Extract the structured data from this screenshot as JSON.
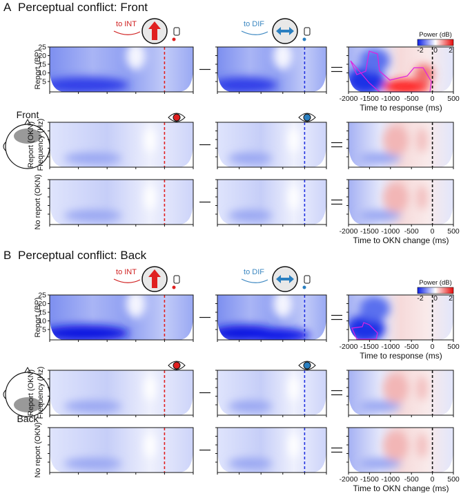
{
  "panels": [
    {
      "label": "A",
      "title": "Perceptual conflict: Front",
      "head_label": "Front",
      "to_int": "to INT",
      "to_dif": "to DIF",
      "rows": [
        {
          "label": "Report (BP)"
        },
        {
          "label": "Report (OKN)",
          "sublabel": "Frequency (Hz)"
        },
        {
          "label": "No report (OKN)"
        }
      ],
      "xlabels": [
        "Time to response (ms)",
        "Time to OKN change (ms)"
      ]
    },
    {
      "label": "B",
      "title": "Perceptual conflict: Back",
      "head_label": "Back",
      "to_int": "to INT",
      "to_dif": "to DIF",
      "rows": [
        {
          "label": "Report (BP)"
        },
        {
          "label": "Report (OKN)",
          "sublabel": "Frequency (Hz)"
        },
        {
          "label": "No report (OKN)"
        }
      ],
      "xlabels": [
        "Time to response (ms)",
        "Time to OKN change (ms)"
      ]
    }
  ],
  "yticks": [
    "25",
    "20",
    "15",
    "10",
    "5"
  ],
  "xticks": [
    "-2000",
    "-1500",
    "-1000",
    "-500",
    "0",
    "500"
  ],
  "colorbar": {
    "title": "Power (dB)",
    "ticks": [
      "-2",
      "0",
      "2"
    ]
  }
}
